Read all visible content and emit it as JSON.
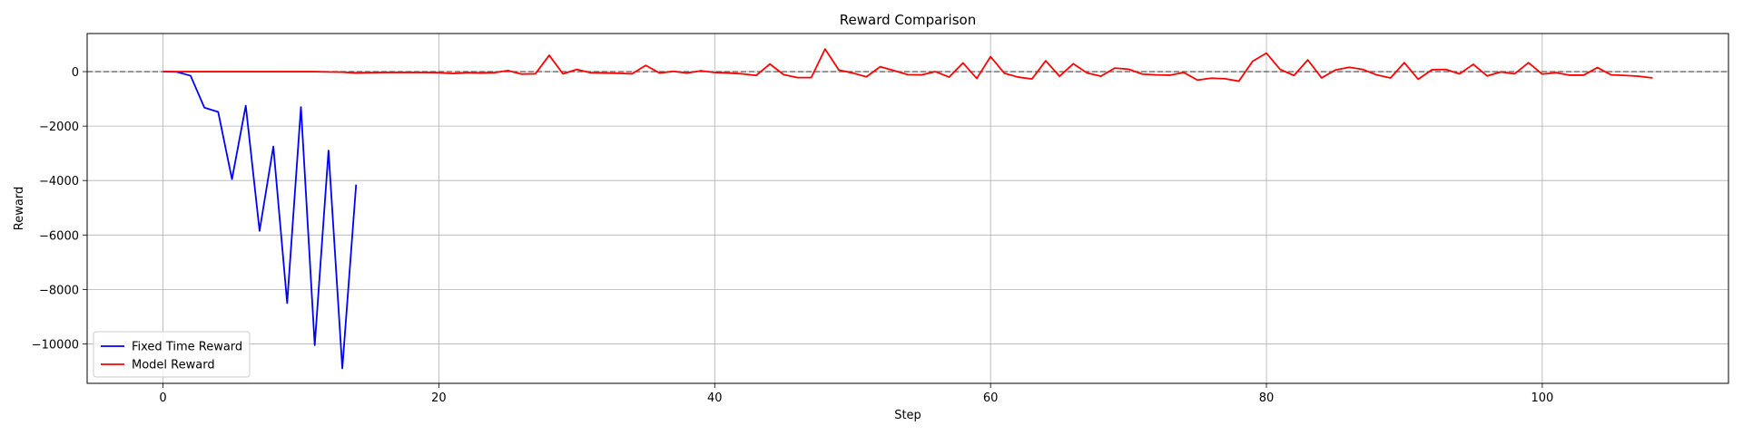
{
  "chart_data": {
    "type": "line",
    "title": "Reward Comparison",
    "xlabel": "Step",
    "ylabel": "Reward",
    "xlim": [
      -5.5,
      113.5
    ],
    "ylim": [
      -11450,
      1400
    ],
    "xticks": [
      0,
      20,
      40,
      60,
      80,
      100
    ],
    "yticks": [
      0,
      -2000,
      -4000,
      -6000,
      -8000,
      -10000
    ],
    "grid": true,
    "legend_position": "lower-left",
    "reference_line": {
      "y": 0,
      "style": "dashed",
      "color": "#666666"
    },
    "series": [
      {
        "name": "Fixed Time Reward",
        "color": "#0000ff",
        "x": [
          0,
          1,
          2,
          3,
          4,
          5,
          6,
          7,
          8,
          9,
          10,
          11,
          12,
          13,
          14
        ],
        "values": [
          0,
          -10,
          -150,
          -1320,
          -1480,
          -3950,
          -1250,
          -5850,
          -2750,
          -8500,
          -1300,
          -10050,
          -2900,
          -10900,
          -4150
        ]
      },
      {
        "name": "Model Reward",
        "color": "#ff0000",
        "x": [
          0,
          1,
          2,
          3,
          4,
          5,
          6,
          7,
          8,
          9,
          10,
          11,
          12,
          13,
          14,
          15,
          16,
          17,
          18,
          19,
          20,
          21,
          22,
          23,
          24,
          25,
          26,
          27,
          28,
          29,
          30,
          31,
          32,
          33,
          34,
          35,
          36,
          37,
          38,
          39,
          40,
          41,
          42,
          43,
          44,
          45,
          46,
          47,
          48,
          49,
          50,
          51,
          52,
          53,
          54,
          55,
          56,
          57,
          58,
          59,
          60,
          61,
          62,
          63,
          64,
          65,
          66,
          67,
          68,
          69,
          70,
          71,
          72,
          73,
          74,
          75,
          76,
          77,
          78,
          79,
          80,
          81,
          82,
          83,
          84,
          85,
          86,
          87,
          88,
          89,
          90,
          91,
          92,
          93,
          94,
          95,
          96,
          97,
          98,
          99,
          100,
          101,
          102,
          103,
          104,
          105,
          106,
          107,
          108
        ],
        "values": [
          0,
          0,
          0,
          0,
          0,
          0,
          0,
          0,
          0,
          0,
          0,
          0,
          -10,
          -20,
          -50,
          -40,
          -30,
          -30,
          -30,
          -30,
          -40,
          -70,
          -40,
          -50,
          -40,
          40,
          -90,
          -80,
          600,
          -80,
          80,
          -40,
          -50,
          -60,
          -80,
          230,
          -50,
          10,
          -50,
          30,
          -30,
          -50,
          -80,
          -140,
          280,
          -110,
          -220,
          -220,
          830,
          60,
          -50,
          -190,
          180,
          40,
          -110,
          -120,
          0,
          -200,
          320,
          -250,
          550,
          -60,
          -200,
          -270,
          400,
          -170,
          290,
          -50,
          -170,
          130,
          90,
          -90,
          -120,
          -130,
          -30,
          -310,
          -240,
          -260,
          -350,
          380,
          680,
          80,
          -140,
          430,
          -230,
          60,
          160,
          80,
          -120,
          -230,
          330,
          -280,
          70,
          80,
          -80,
          270,
          -160,
          -10,
          -80,
          330,
          -90,
          -40,
          -130,
          -130,
          150,
          -120,
          -140,
          -170,
          -230
        ]
      }
    ]
  }
}
